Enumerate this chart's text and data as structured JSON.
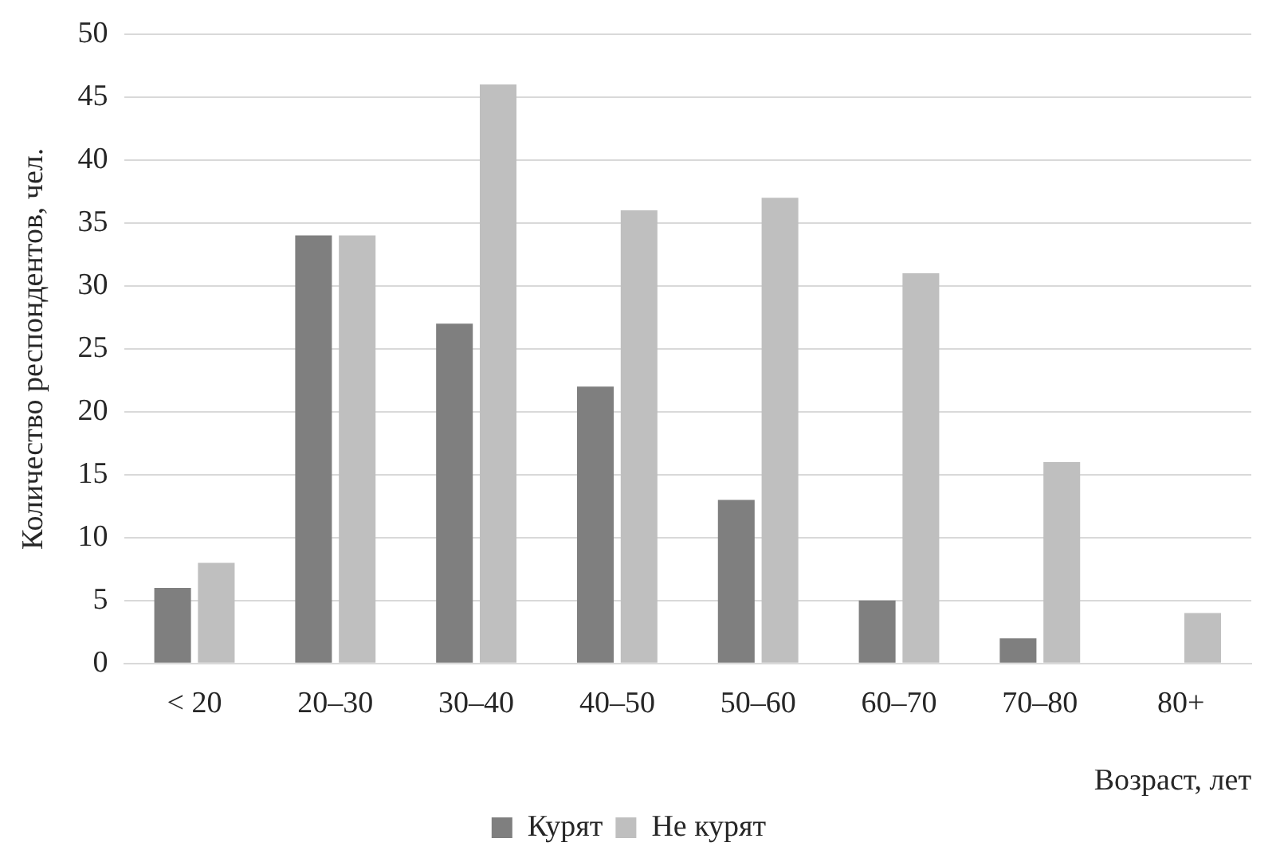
{
  "chart_data": {
    "type": "bar",
    "xlabel": "Возраст, лет",
    "ylabel": "Количество респондентов, чел.",
    "categories": [
      "< 20",
      "20–30",
      "30–40",
      "40–50",
      "50–60",
      "60–70",
      "70–80",
      "80+"
    ],
    "series": [
      {
        "name": "Курят",
        "color": "#7f7f7f",
        "values": [
          6,
          34,
          27,
          22,
          13,
          5,
          2,
          0
        ]
      },
      {
        "name": "Не курят",
        "color": "#bfbfbf",
        "values": [
          8,
          34,
          46,
          36,
          37,
          31,
          16,
          4
        ]
      }
    ],
    "ylim": [
      0,
      50
    ],
    "yticks": [
      0,
      5,
      10,
      15,
      20,
      25,
      30,
      35,
      40,
      45,
      50
    ],
    "grid": "y",
    "legend": "bottom"
  }
}
